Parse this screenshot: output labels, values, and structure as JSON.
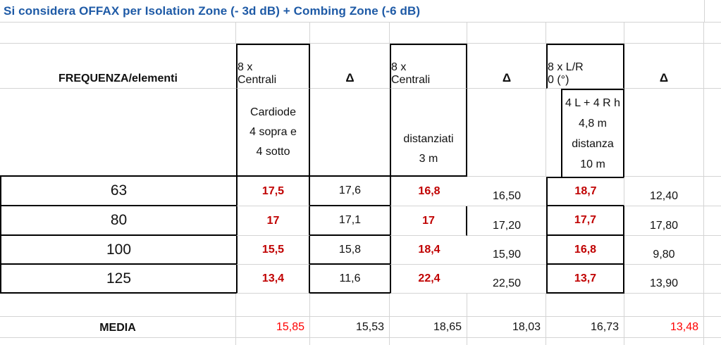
{
  "title": {
    "text": "Si considera OFFAX per Isolation Zone (- 3d dB) + Combing Zone (-6 dB)"
  },
  "header": {
    "row_label": "FREQUENZA/elementi",
    "delta": "Δ",
    "groups": [
      {
        "top": [
          "8 x",
          "Centrali"
        ],
        "sub": [
          "Cardiode",
          "4 sopra e",
          "4 sotto"
        ]
      },
      {
        "top": [
          "8 x",
          "Centrali"
        ],
        "sub": [
          "distanziati",
          "3 m"
        ]
      },
      {
        "top": [
          "8 x L/R",
          "0 (°)"
        ],
        "sub": [
          "4 L + 4 R h",
          "4,8 m",
          "distanza",
          "10 m"
        ]
      }
    ]
  },
  "rows": [
    {
      "freq": "63",
      "v1": "17,5",
      "d1": "17,6",
      "v2": "16,8",
      "d2": "16,50",
      "v3": "18,7",
      "d3": "12,40"
    },
    {
      "freq": "80",
      "v1": "17",
      "d1": "17,1",
      "v2": "17",
      "d2": "17,20",
      "v3": "17,7",
      "d3": "17,80"
    },
    {
      "freq": "100",
      "v1": "15,5",
      "d1": "15,8",
      "v2": "18,4",
      "d2": "15,90",
      "v3": "16,8",
      "d3": "9,80"
    },
    {
      "freq": "125",
      "v1": "13,4",
      "d1": "11,6",
      "v2": "22,4",
      "d2": "22,50",
      "v3": "13,7",
      "d3": "13,90"
    }
  ],
  "media": {
    "label": "MEDIA",
    "values": [
      "15,85",
      "15,53",
      "18,65",
      "18,03",
      "16,73",
      "13,48"
    ]
  },
  "colors": {
    "title_blue": "#1e5aa6",
    "value_dark_red": "#c00000",
    "media_red": "#ff0000",
    "gridline": "#d4d4d4"
  }
}
